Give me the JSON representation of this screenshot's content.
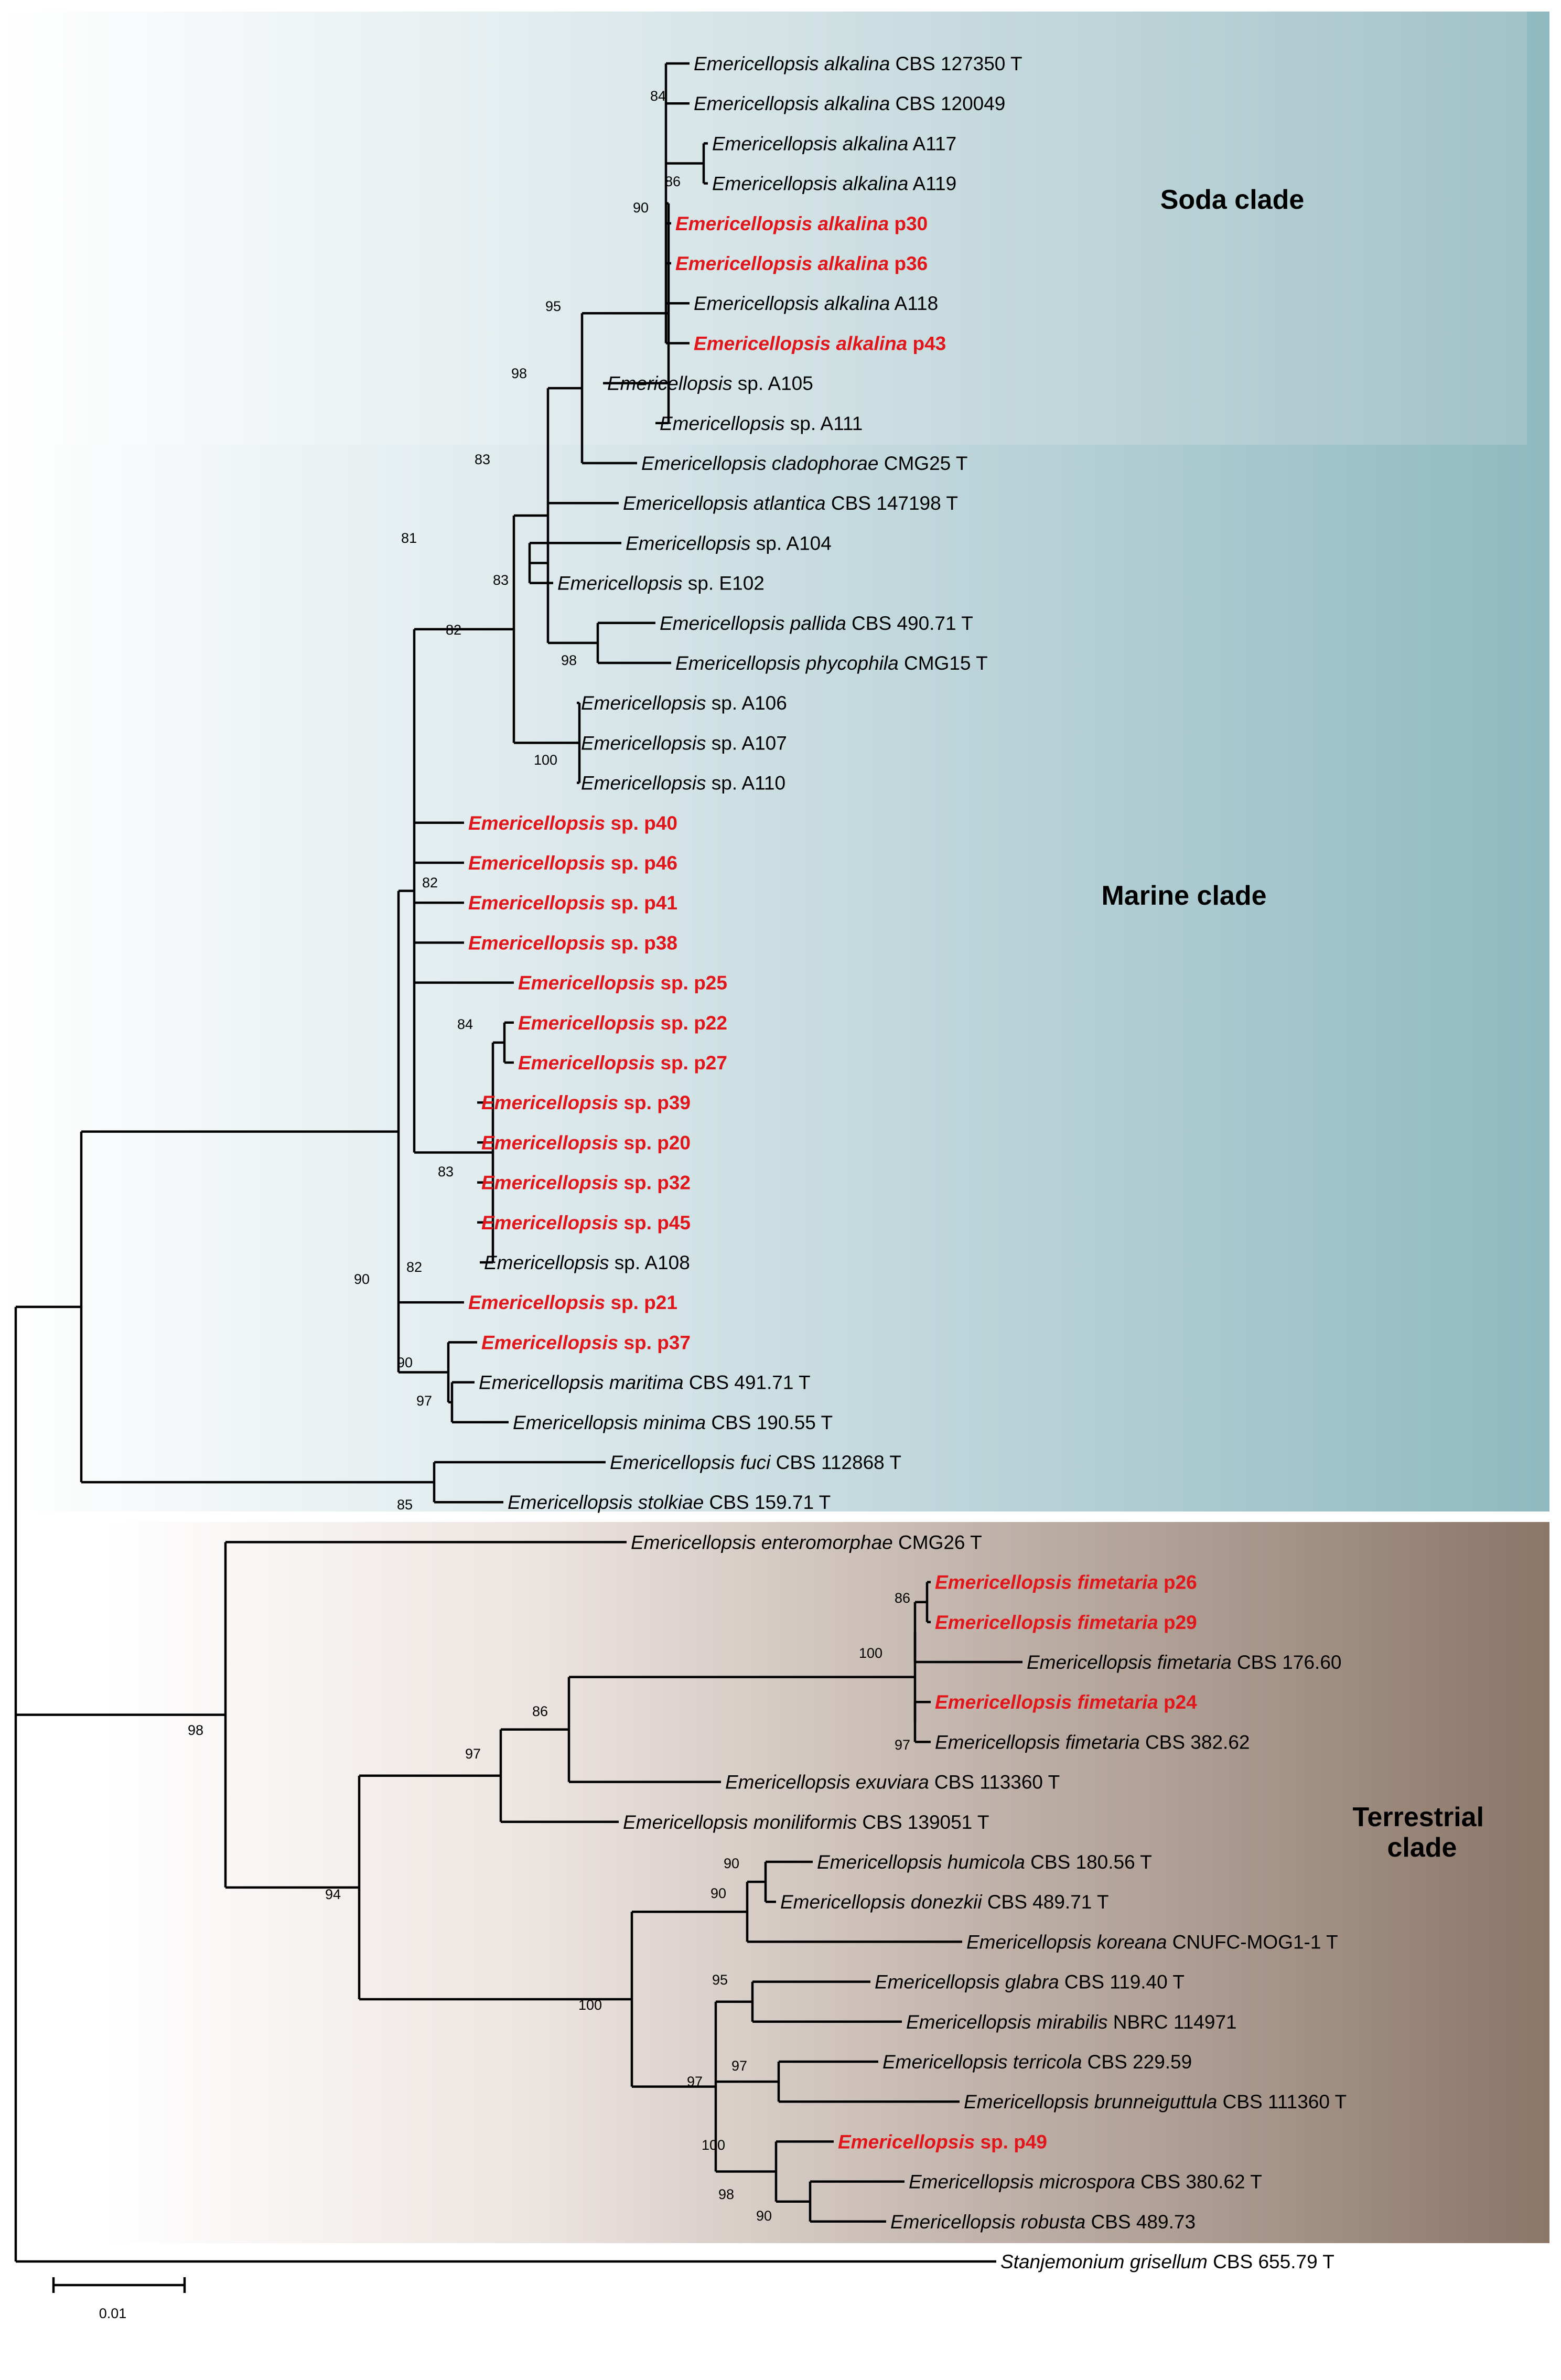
{
  "figure": {
    "type": "phylogenetic tree",
    "genus_focus": "Emericellopsis"
  },
  "regions": [
    {
      "id": "soda",
      "label": "Soda clade"
    },
    {
      "id": "marine",
      "label": "Marine clade"
    },
    {
      "id": "terrestrial",
      "label_lines": [
        "Terrestrial",
        "clade"
      ]
    }
  ],
  "taxa": [
    {
      "genus": "Emericellopsis",
      "epithet": "alkalina",
      "strain": "CBS 127350 T",
      "highlight": false
    },
    {
      "genus": "Emericellopsis",
      "epithet": "alkalina",
      "strain": "CBS 120049",
      "highlight": false
    },
    {
      "genus": "Emericellopsis",
      "epithet": "alkalina",
      "strain": "A117",
      "highlight": false
    },
    {
      "genus": "Emericellopsis",
      "epithet": "alkalina",
      "strain": "A119",
      "highlight": false
    },
    {
      "genus": "Emericellopsis",
      "epithet": "alkalina",
      "strain": "p30",
      "highlight": true
    },
    {
      "genus": "Emericellopsis",
      "epithet": "alkalina",
      "strain": "p36",
      "highlight": true
    },
    {
      "genus": "Emericellopsis",
      "epithet": "alkalina",
      "strain": "A118",
      "highlight": false
    },
    {
      "genus": "Emericellopsis",
      "epithet": "alkalina",
      "strain": "p43",
      "highlight": true
    },
    {
      "genus": "Emericellopsis",
      "epithet": "",
      "strain": "sp. A105",
      "highlight": false
    },
    {
      "genus": "Emericellopsis",
      "epithet": "",
      "strain": "sp. A111",
      "highlight": false
    },
    {
      "genus": "Emericellopsis",
      "epithet": "cladophorae",
      "strain": "CMG25 T",
      "highlight": false
    },
    {
      "genus": "Emericellopsis",
      "epithet": "atlantica",
      "strain": "CBS 147198 T",
      "highlight": false
    },
    {
      "genus": "Emericellopsis",
      "epithet": "",
      "strain": "sp. A104",
      "highlight": false
    },
    {
      "genus": "Emericellopsis",
      "epithet": "",
      "strain": "sp. E102",
      "highlight": false
    },
    {
      "genus": "Emericellopsis",
      "epithet": "pallida",
      "strain": "CBS 490.71 T",
      "highlight": false
    },
    {
      "genus": "Emericellopsis",
      "epithet": "phycophila",
      "strain": "CMG15 T",
      "highlight": false
    },
    {
      "genus": "Emericellopsis",
      "epithet": "",
      "strain": "sp. A106",
      "highlight": false
    },
    {
      "genus": "Emericellopsis",
      "epithet": "",
      "strain": "sp. A107",
      "highlight": false
    },
    {
      "genus": "Emericellopsis",
      "epithet": "",
      "strain": "sp. A110",
      "highlight": false
    },
    {
      "genus": "Emericellopsis",
      "epithet": "",
      "strain": "sp. p40",
      "highlight": true
    },
    {
      "genus": "Emericellopsis",
      "epithet": "",
      "strain": "sp. p46",
      "highlight": true
    },
    {
      "genus": "Emericellopsis",
      "epithet": "",
      "strain": "sp. p41",
      "highlight": true
    },
    {
      "genus": "Emericellopsis",
      "epithet": "",
      "strain": "sp. p38",
      "highlight": true
    },
    {
      "genus": "Emericellopsis",
      "epithet": "",
      "strain": "sp.  p25",
      "highlight": true
    },
    {
      "genus": "Emericellopsis",
      "epithet": "",
      "strain": "sp.  p22",
      "highlight": true
    },
    {
      "genus": "Emericellopsis",
      "epithet": "",
      "strain": "sp. p27",
      "highlight": true
    },
    {
      "genus": "Emericellopsis",
      "epithet": "",
      "strain": "sp.  p39",
      "highlight": true
    },
    {
      "genus": "Emericellopsis",
      "epithet": "",
      "strain": "sp.  p20",
      "highlight": true
    },
    {
      "genus": "Emericellopsis",
      "epithet": "",
      "strain": "sp.  p32",
      "highlight": true
    },
    {
      "genus": "Emericellopsis",
      "epithet": "",
      "strain": "sp. p45",
      "highlight": true
    },
    {
      "genus": "Emericellopsis",
      "epithet": "",
      "strain": "sp. A108",
      "highlight": false
    },
    {
      "genus": "Emericellopsis",
      "epithet": "",
      "strain": "sp. p21",
      "highlight": true
    },
    {
      "genus": "Emericellopsis",
      "epithet": "",
      "strain": "sp. p37",
      "highlight": true
    },
    {
      "genus": "Emericellopsis",
      "epithet": "maritima",
      "strain": "CBS 491.71 T",
      "highlight": false
    },
    {
      "genus": "Emericellopsis",
      "epithet": "minima",
      "strain": "CBS 190.55 T",
      "highlight": false
    },
    {
      "genus": "Emericellopsis",
      "epithet": "fuci",
      "strain": "CBS 112868 T",
      "highlight": false
    },
    {
      "genus": "Emericellopsis",
      "epithet": "stolkiae",
      "strain": "CBS 159.71 T",
      "highlight": false
    },
    {
      "genus": "Emericellopsis",
      "epithet": "enteromorphae",
      "strain": "CMG26 T",
      "highlight": false
    },
    {
      "genus": "Emericellopsis",
      "epithet": "fimetaria",
      "strain": "p26",
      "highlight": true
    },
    {
      "genus": "Emericellopsis",
      "epithet": "fimetaria",
      "strain": "p29",
      "highlight": true
    },
    {
      "genus": "Emericellopsis",
      "epithet": "fimetaria",
      "strain": "CBS 176.60",
      "highlight": false
    },
    {
      "genus": "Emericellopsis",
      "epithet": "fimetaria",
      "strain": "p24",
      "highlight": true
    },
    {
      "genus": "Emericellopsis",
      "epithet": "fimetaria",
      "strain": "CBS 382.62",
      "highlight": false
    },
    {
      "genus": "Emericellopsis",
      "epithet": "exuviara",
      "strain": "CBS 113360 T",
      "highlight": false
    },
    {
      "genus": "Emericellopsis",
      "epithet": "moniliformis",
      "strain": "CBS 139051 T",
      "highlight": false
    },
    {
      "genus": "Emericellopsis",
      "epithet": "humicola",
      "strain": "CBS 180.56 T",
      "highlight": false
    },
    {
      "genus": "Emericellopsis",
      "epithet": "donezkii",
      "strain": "CBS 489.71 T",
      "highlight": false
    },
    {
      "genus": "Emericellopsis",
      "epithet": "koreana",
      "strain": "CNUFC-MOG1-1 T",
      "highlight": false
    },
    {
      "genus": "Emericellopsis",
      "epithet": "glabra",
      "strain": "CBS 119.40 T",
      "highlight": false
    },
    {
      "genus": "Emericellopsis",
      "epithet": "mirabilis",
      "strain": "NBRC 114971",
      "highlight": false
    },
    {
      "genus": "Emericellopsis",
      "epithet": "terricola",
      "strain": "CBS 229.59",
      "highlight": false
    },
    {
      "genus": "Emericellopsis",
      "epithet": "brunneiguttula",
      "strain": "CBS 111360 T",
      "highlight": false
    },
    {
      "genus": "Emericellopsis",
      "epithet": "",
      "strain": "sp. p49",
      "highlight": true
    },
    {
      "genus": "Emericellopsis",
      "epithet": "microspora",
      "strain": "CBS 380.62 T",
      "highlight": false
    },
    {
      "genus": "Emericellopsis",
      "epithet": "robusta",
      "strain": "CBS 489.73",
      "highlight": false
    },
    {
      "genus": "Stanjemonium",
      "epithet": "grisellum",
      "strain": "CBS 655.79 T",
      "highlight": false
    }
  ],
  "bootstrap_values": [
    "84",
    "86",
    "90",
    "95",
    "98",
    "83",
    "81",
    "83",
    "82",
    "98",
    "100",
    "82",
    "84",
    "83",
    "82",
    "90",
    "90",
    "97",
    "85",
    "86",
    "100",
    "97",
    "86",
    "97",
    "98",
    "90",
    "90",
    "95",
    "100",
    "97",
    "97",
    "100",
    "98",
    "90",
    "94"
  ],
  "scale": {
    "label": "0.01"
  },
  "colors": {
    "highlight": "#e0161b",
    "soda_bg": "#a9c7cc",
    "marine_bg": "#93bcc3",
    "terrestrial_bg": "#8e7a6d"
  }
}
